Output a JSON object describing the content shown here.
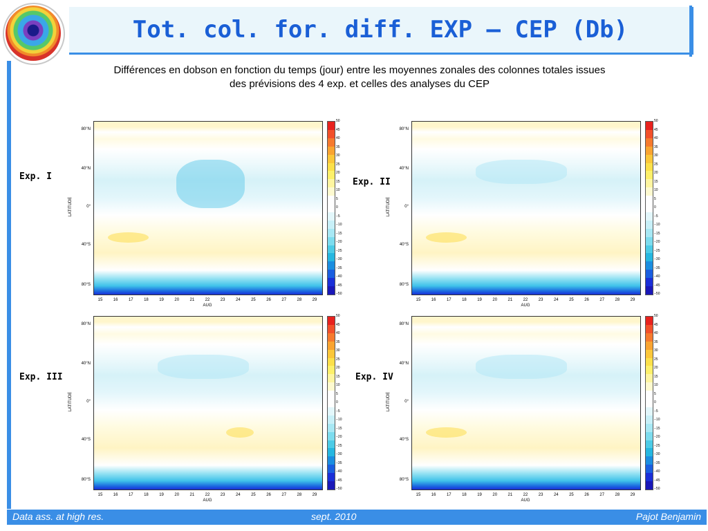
{
  "title": "Tot. col. for. diff. EXP – CEP (Db)",
  "subtitle_line1": "Différences en dobson en fonction du temps (jour) entre les moyennes zonales des colonnes totales issues",
  "subtitle_line2": "des prévisions des 4 exp. et celles des analyses du CEP",
  "logo_icon": "ozone-globe-icon",
  "footer": {
    "left": "Data ass. at high res.",
    "center": "sept. 2010",
    "right": "Pajot Benjamin"
  },
  "colors": {
    "accent": "#3a8ee6",
    "title": "#1a5fd6",
    "title_bg": "#eaf6fb"
  },
  "chart_data": [
    {
      "type": "heatmap",
      "label": "Exp. I",
      "ylabel": "LATITUDE",
      "xlabel": "AUG",
      "x_ticks": [
        "15",
        "16",
        "17",
        "18",
        "19",
        "20",
        "21",
        "22",
        "23",
        "24",
        "25",
        "26",
        "27",
        "28",
        "29"
      ],
      "y_ticks": [
        "80°N",
        "40°N",
        "0°",
        "40°S",
        "80°S"
      ],
      "colorbar_ticks": [
        "50",
        "45",
        "40",
        "35",
        "30",
        "25",
        "20",
        "15",
        "10",
        "5",
        "0",
        "−5",
        "−10",
        "−15",
        "−20",
        "−25",
        "−30",
        "−35",
        "−40",
        "−45",
        "−50"
      ],
      "zrange": [
        -50,
        50
      ]
    },
    {
      "type": "heatmap",
      "label": "Exp. II",
      "ylabel": "LATITUDE",
      "xlabel": "AUG",
      "x_ticks": [
        "15",
        "16",
        "17",
        "18",
        "19",
        "20",
        "21",
        "22",
        "23",
        "24",
        "25",
        "26",
        "27",
        "28",
        "29"
      ],
      "y_ticks": [
        "80°N",
        "40°N",
        "0°",
        "40°S",
        "80°S"
      ],
      "colorbar_ticks": [
        "50",
        "45",
        "40",
        "35",
        "30",
        "25",
        "20",
        "15",
        "10",
        "5",
        "0",
        "−5",
        "−10",
        "−15",
        "−20",
        "−25",
        "−30",
        "−35",
        "−40",
        "−45",
        "−50"
      ],
      "zrange": [
        -50,
        50
      ]
    },
    {
      "type": "heatmap",
      "label": "Exp. III",
      "ylabel": "LATITUDE",
      "xlabel": "AUG",
      "x_ticks": [
        "15",
        "16",
        "17",
        "18",
        "19",
        "20",
        "21",
        "22",
        "23",
        "24",
        "25",
        "26",
        "27",
        "28",
        "29"
      ],
      "y_ticks": [
        "80°N",
        "40°N",
        "0°",
        "40°S",
        "80°S"
      ],
      "colorbar_ticks": [
        "50",
        "45",
        "40",
        "35",
        "30",
        "25",
        "20",
        "15",
        "10",
        "5",
        "0",
        "−5",
        "−10",
        "−15",
        "−20",
        "−25",
        "−30",
        "−35",
        "−40",
        "−45",
        "−50"
      ],
      "zrange": [
        -50,
        50
      ]
    },
    {
      "type": "heatmap",
      "label": "Exp. IV",
      "ylabel": "LATITUDE",
      "xlabel": "AUG",
      "x_ticks": [
        "15",
        "16",
        "17",
        "18",
        "19",
        "20",
        "21",
        "22",
        "23",
        "24",
        "25",
        "26",
        "27",
        "28",
        "29"
      ],
      "y_ticks": [
        "80°N",
        "40°N",
        "0°",
        "40°S",
        "80°S"
      ],
      "colorbar_ticks": [
        "50",
        "45",
        "40",
        "35",
        "30",
        "25",
        "20",
        "15",
        "10",
        "5",
        "0",
        "−5",
        "−10",
        "−15",
        "−20",
        "−25",
        "−30",
        "−35",
        "−40",
        "−45",
        "−50"
      ],
      "zrange": [
        -50,
        50
      ]
    }
  ],
  "colorbar_colors": [
    "#e8221e",
    "#f2502a",
    "#f67a2e",
    "#f9a431",
    "#fbc73a",
    "#fce04a",
    "#fdf06a",
    "#fef5a0",
    "#fefad0",
    "#ffffff",
    "#ffffff",
    "#e3f7fb",
    "#c8f0f8",
    "#a8e8f4",
    "#7ddcee",
    "#4ccbe6",
    "#26b7e0",
    "#1b8ee0",
    "#1a5ee0",
    "#1a2fd8",
    "#1a18b8"
  ]
}
